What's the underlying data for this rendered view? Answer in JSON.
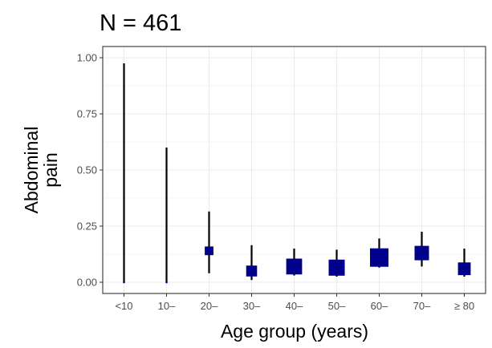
{
  "chart_data": {
    "type": "scatter",
    "title": "N = 461",
    "xlabel": "Age group (years)",
    "ylabel_lines": [
      "Abdominal",
      "pain"
    ],
    "categories": [
      "<10",
      "10–",
      "20–",
      "30–",
      "40–",
      "50–",
      "60–",
      "70–",
      "≥ 80"
    ],
    "yticks": [
      "0.00",
      "0.25",
      "0.50",
      "0.75",
      "1.00"
    ],
    "ylim": [
      -0.05,
      1.05
    ],
    "grid": true,
    "points": [
      {
        "category": "<10",
        "estimate": 0.0,
        "lower": 0.0,
        "upper": 0.975,
        "n": 1
      },
      {
        "category": "10–",
        "estimate": 0.0,
        "lower": 0.0,
        "upper": 0.6,
        "n": 1
      },
      {
        "category": "20–",
        "estimate": 0.14,
        "lower": 0.04,
        "upper": 0.315,
        "n": 21
      },
      {
        "category": "30–",
        "estimate": 0.05,
        "lower": 0.01,
        "upper": 0.165,
        "n": 33
      },
      {
        "category": "40–",
        "estimate": 0.07,
        "lower": 0.03,
        "upper": 0.15,
        "n": 70
      },
      {
        "category": "50–",
        "estimate": 0.065,
        "lower": 0.025,
        "upper": 0.145,
        "n": 72
      },
      {
        "category": "60–",
        "estimate": 0.11,
        "lower": 0.065,
        "upper": 0.195,
        "n": 95
      },
      {
        "category": "70–",
        "estimate": 0.13,
        "lower": 0.07,
        "upper": 0.225,
        "n": 58
      },
      {
        "category": "≥ 80",
        "estimate": 0.06,
        "lower": 0.025,
        "upper": 0.15,
        "n": 45
      }
    ],
    "colors": {
      "point": "#00008b",
      "errorbar": "#000000",
      "grid": "#ebebeb",
      "border": "#333333"
    }
  }
}
